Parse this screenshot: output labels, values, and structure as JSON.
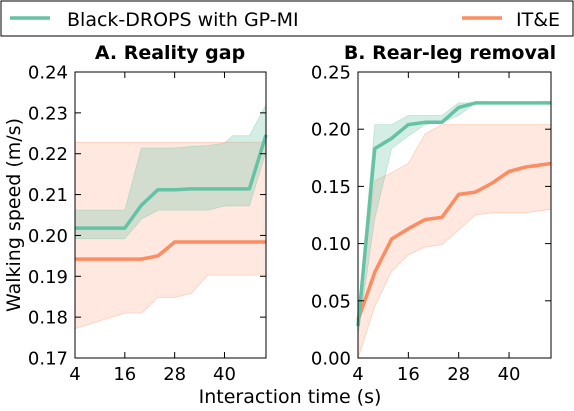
{
  "legend": [
    {
      "label": "Black-DROPS with GP-MI",
      "color": "#66c2a5"
    },
    {
      "label": "IT&E",
      "color": "#fc8d62"
    }
  ],
  "figure": {
    "ylabel": "Walking speed (m/s)",
    "xlabel": "Interaction time (s)"
  },
  "chart_data": [
    {
      "type": "line",
      "title": "A. Reality gap",
      "xlabel": "Interaction time (s)",
      "ylabel": "Walking speed (m/s)",
      "xlim": [
        4,
        50
      ],
      "ylim": [
        0.17,
        0.24
      ],
      "xticks": [
        4,
        16,
        28,
        40
      ],
      "yticks": [
        0.17,
        0.18,
        0.19,
        0.2,
        0.21,
        0.22,
        0.23,
        0.24
      ],
      "ytick_labels": [
        "0.17",
        "0.18",
        "0.19",
        "0.20",
        "0.21",
        "0.22",
        "0.23",
        "0.24"
      ],
      "grid": false,
      "series": [
        {
          "name": "Black-DROPS with GP-MI",
          "color": "#66c2a5",
          "x": [
            4,
            16,
            20,
            24,
            28,
            32,
            36,
            40,
            42,
            46,
            50
          ],
          "y": [
            0.2018,
            0.2018,
            0.2074,
            0.2112,
            0.2112,
            0.2114,
            0.2114,
            0.2114,
            0.2114,
            0.2114,
            0.2246
          ],
          "upper": [
            0.2062,
            0.2062,
            0.2214,
            0.2214,
            0.2214,
            0.2218,
            0.222,
            0.2226,
            0.2244,
            0.2244,
            0.232
          ],
          "lower": [
            0.1992,
            0.1992,
            0.204,
            0.2062,
            0.2062,
            0.2062,
            0.2062,
            0.2072,
            0.2072,
            0.2072,
            0.2204
          ]
        },
        {
          "name": "IT&E",
          "color": "#fc8d62",
          "x": [
            4,
            16,
            20,
            24,
            28,
            32,
            36,
            40,
            44,
            50
          ],
          "y": [
            0.1942,
            0.1942,
            0.1942,
            0.195,
            0.1984,
            0.1984,
            0.1984,
            0.1984,
            0.1984,
            0.1984
          ],
          "upper": [
            0.2228,
            0.2228,
            0.2228,
            0.2228,
            0.2228,
            0.2228,
            0.2228,
            0.2228,
            0.2228,
            0.2228
          ],
          "lower": [
            0.1772,
            0.181,
            0.181,
            0.1848,
            0.1848,
            0.1858,
            0.1903,
            0.1903,
            0.1903,
            0.1903
          ]
        }
      ]
    },
    {
      "type": "line",
      "title": "B. Rear-leg removal",
      "xlabel": "Interaction time (s)",
      "ylabel": "",
      "xlim": [
        4,
        50
      ],
      "ylim": [
        0.0,
        0.25
      ],
      "xticks": [
        4,
        16,
        28,
        40
      ],
      "yticks": [
        0.0,
        0.05,
        0.1,
        0.15,
        0.2,
        0.25
      ],
      "ytick_labels": [
        "0.00",
        "0.05",
        "0.10",
        "0.15",
        "0.20",
        "0.25"
      ],
      "grid": false,
      "series": [
        {
          "name": "Black-DROPS with GP-MI",
          "color": "#66c2a5",
          "x": [
            4,
            8,
            12,
            16,
            20,
            24,
            28,
            32,
            36,
            40,
            44,
            50
          ],
          "y": [
            0.028,
            0.183,
            0.192,
            0.204,
            0.206,
            0.206,
            0.219,
            0.223,
            0.223,
            0.223,
            0.223,
            0.223
          ],
          "upper": [
            0.036,
            0.204,
            0.204,
            0.212,
            0.212,
            0.212,
            0.223,
            0.223,
            0.223,
            0.223,
            0.223,
            0.223
          ],
          "lower": [
            0.02,
            0.122,
            0.183,
            0.194,
            0.204,
            0.206,
            0.212,
            0.223,
            0.223,
            0.223,
            0.223,
            0.223
          ]
        },
        {
          "name": "IT&E",
          "color": "#fc8d62",
          "x": [
            4,
            8,
            12,
            16,
            20,
            24,
            28,
            32,
            36,
            40,
            44,
            50
          ],
          "y": [
            0.033,
            0.075,
            0.104,
            0.113,
            0.121,
            0.123,
            0.143,
            0.145,
            0.153,
            0.163,
            0.167,
            0.17
          ],
          "upper": [
            0.04,
            0.155,
            0.162,
            0.17,
            0.196,
            0.204,
            0.204,
            0.204,
            0.204,
            0.204,
            0.204,
            0.204
          ],
          "lower": [
            0.0,
            0.045,
            0.076,
            0.09,
            0.097,
            0.099,
            0.112,
            0.125,
            0.127,
            0.127,
            0.127,
            0.13
          ]
        }
      ]
    }
  ]
}
